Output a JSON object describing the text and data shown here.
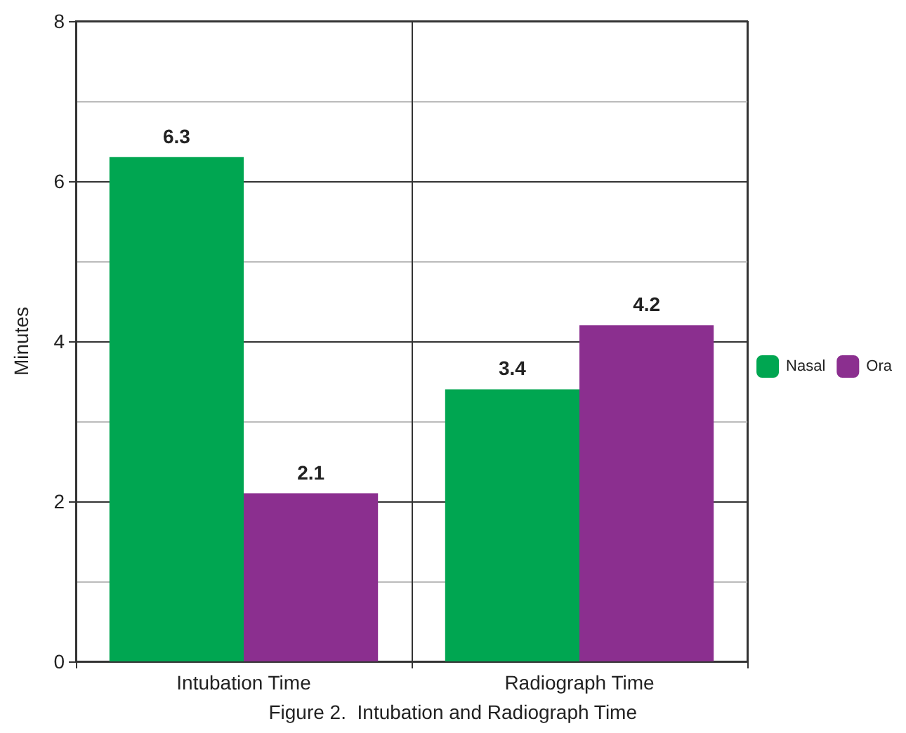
{
  "chart_data": {
    "type": "bar",
    "ylabel": "Minutes",
    "categories": [
      "Intubation Time",
      "Radiograph Time"
    ],
    "series": [
      {
        "name": "Nasal",
        "color": "#00a651",
        "values": [
          6.3,
          3.4
        ]
      },
      {
        "name": "Ora",
        "color": "#8b2f8f",
        "values": [
          2.1,
          4.2
        ]
      }
    ],
    "ylim": [
      0,
      8
    ],
    "yticks": [
      0,
      2,
      4,
      6,
      8
    ],
    "grid": true,
    "legend": "right",
    "data_labels": true,
    "annotations": [
      "Figure 2.  Intubation and Radiograph Time"
    ]
  }
}
